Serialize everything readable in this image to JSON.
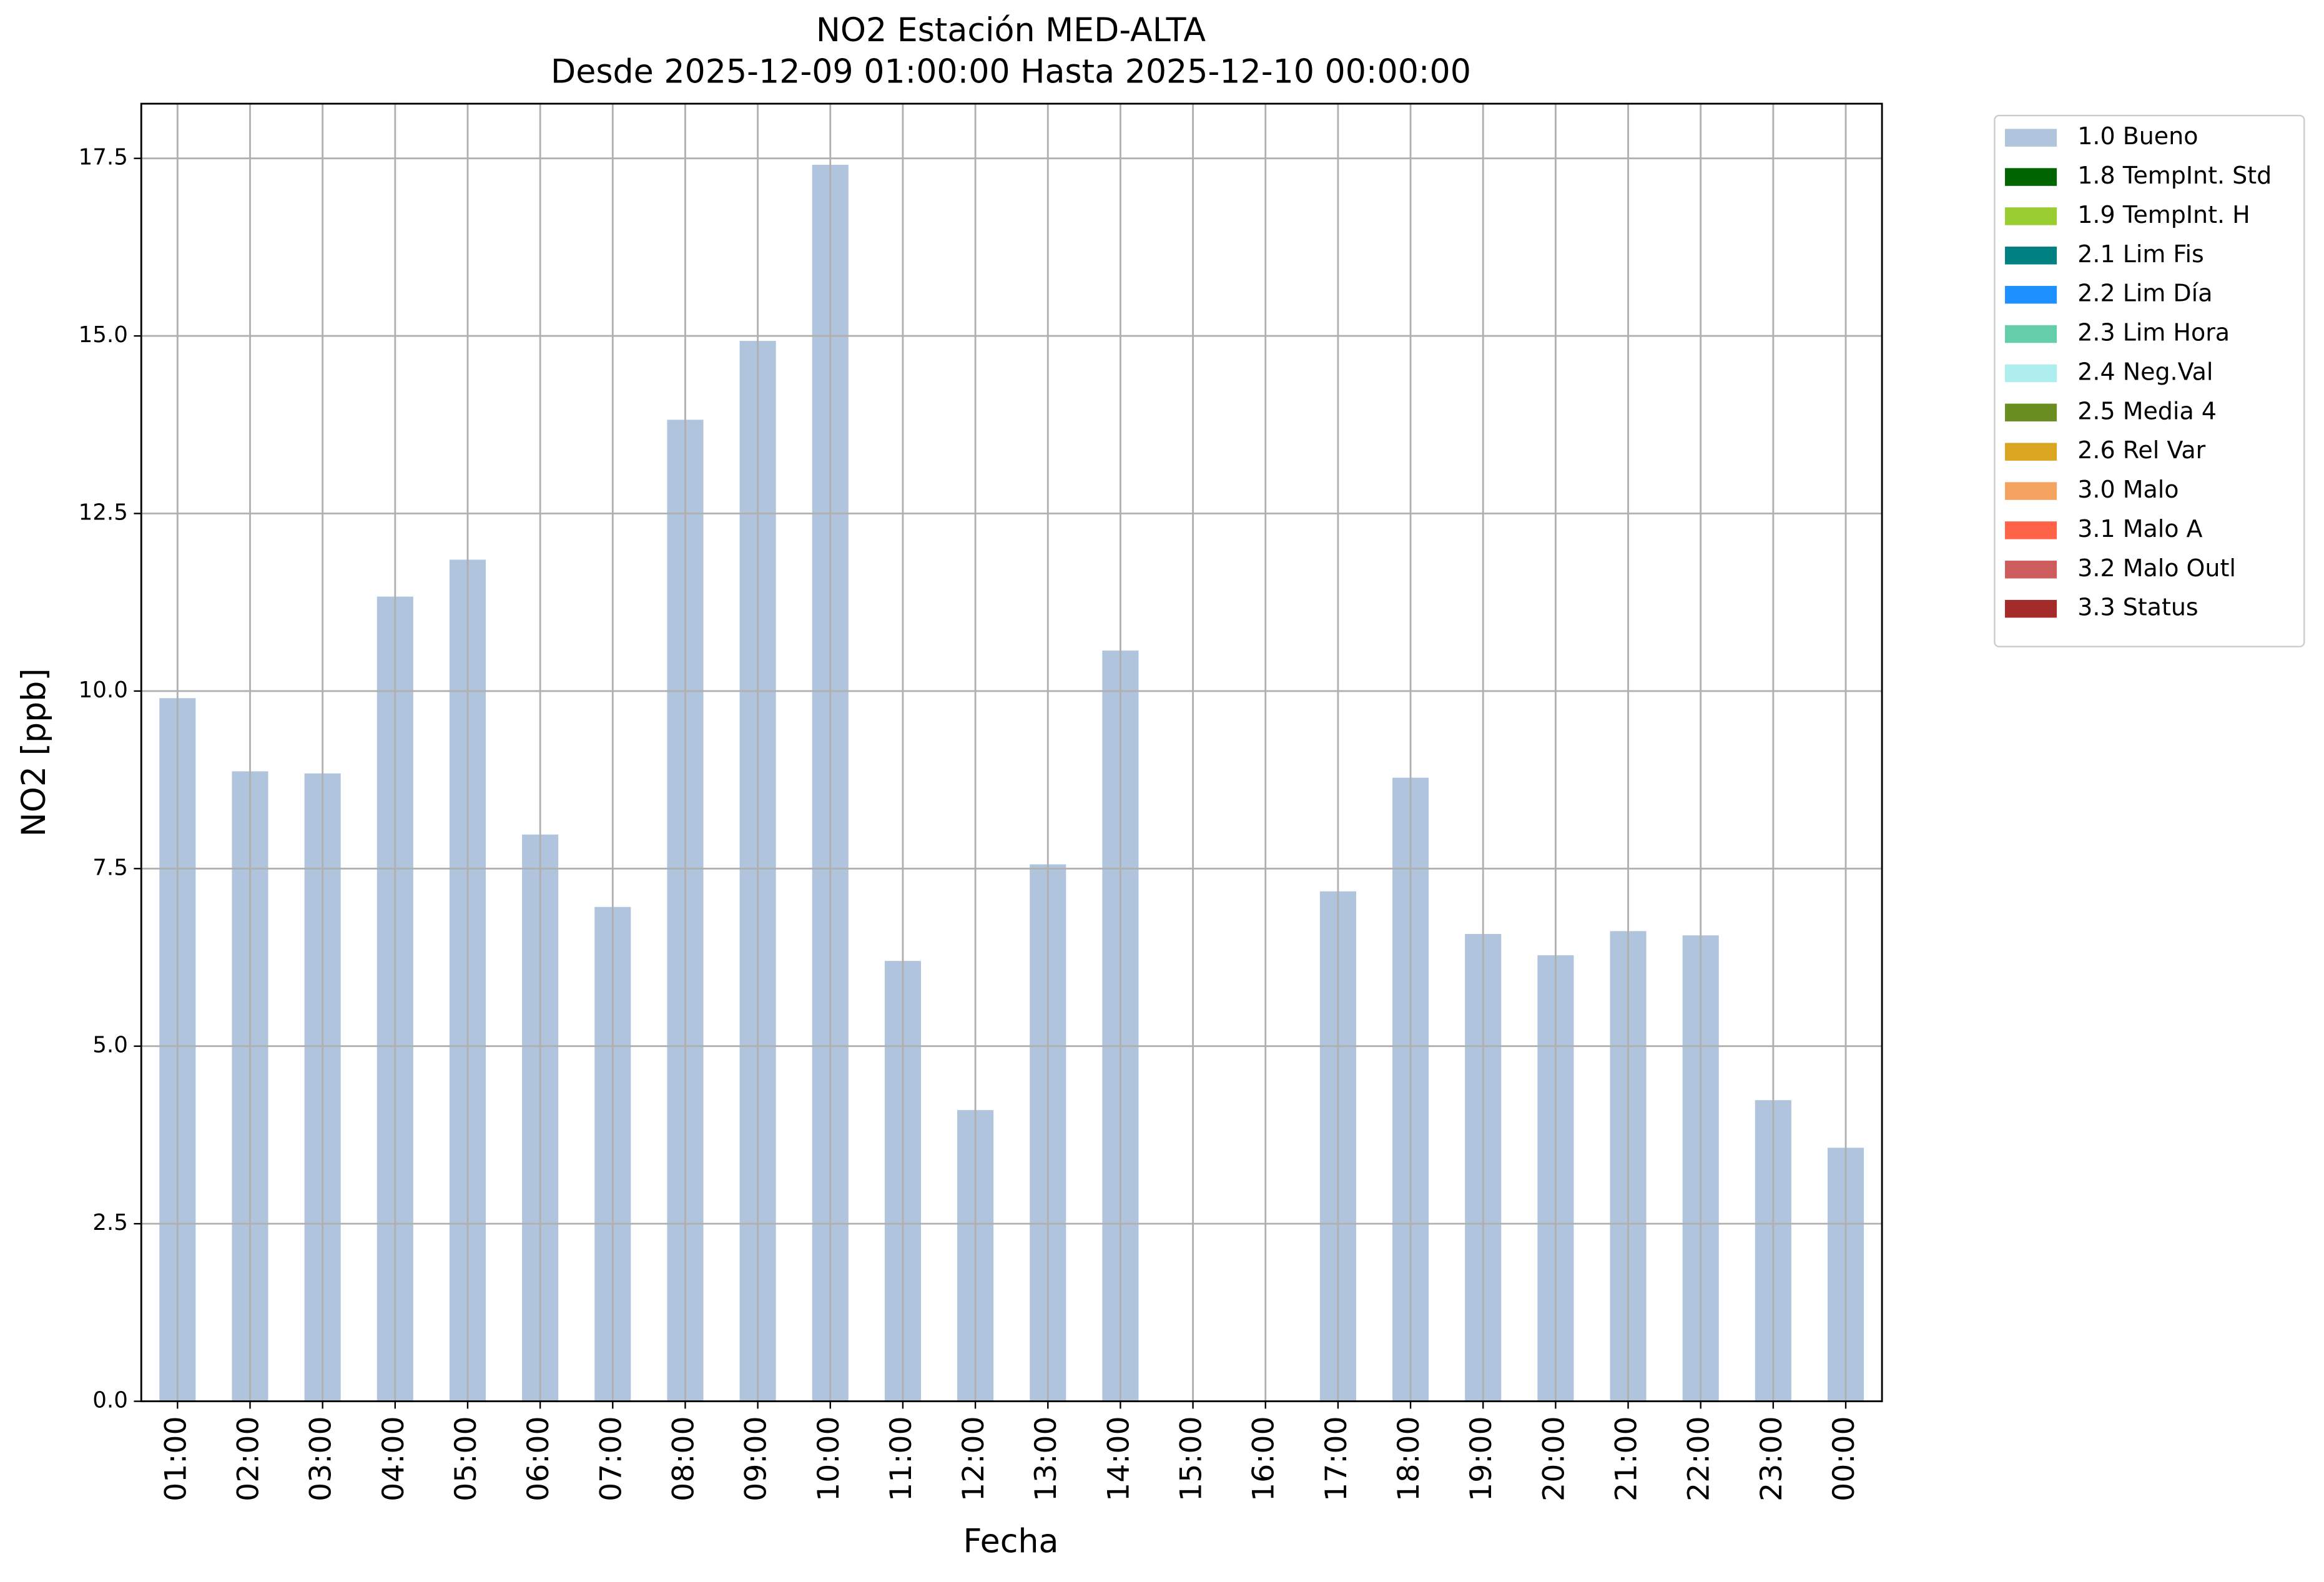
{
  "chart_data": {
    "type": "bar",
    "stacked": true,
    "title": "NO2 Estación MED-ALTA",
    "subtitle": "Desde 2025-12-09 01:00:00 Hasta 2025-12-10 00:00:00",
    "x_label": "Fecha",
    "y_label": "NO2 [ppb]",
    "categories": [
      "01:00",
      "02:00",
      "03:00",
      "04:00",
      "05:00",
      "06:00",
      "07:00",
      "08:00",
      "09:00",
      "10:00",
      "11:00",
      "12:00",
      "13:00",
      "14:00",
      "15:00",
      "16:00",
      "17:00",
      "18:00",
      "19:00",
      "20:00",
      "21:00",
      "22:00",
      "23:00",
      "00:00"
    ],
    "series": [
      {
        "name": "1.0 Bueno",
        "color": "#b0c4de",
        "values": [
          9.9,
          8.87,
          8.84,
          11.33,
          11.85,
          7.98,
          6.96,
          13.82,
          14.93,
          17.41,
          6.2,
          4.1,
          7.56,
          10.57,
          null,
          null,
          7.18,
          8.78,
          6.58,
          6.28,
          6.62,
          6.56,
          4.24,
          3.57
        ]
      },
      {
        "name": "1.8 TempInt. Std",
        "color": "#006400",
        "values": [
          null,
          null,
          null,
          null,
          null,
          null,
          null,
          null,
          null,
          null,
          null,
          null,
          null,
          null,
          null,
          null,
          null,
          null,
          null,
          null,
          null,
          null,
          null,
          null
        ]
      },
      {
        "name": "1.9 TempInt. H",
        "color": "#9acd32",
        "values": [
          null,
          null,
          null,
          null,
          null,
          null,
          null,
          null,
          null,
          null,
          null,
          null,
          null,
          null,
          null,
          null,
          null,
          null,
          null,
          null,
          null,
          null,
          null,
          null
        ]
      },
      {
        "name": "2.1 Lim Fis",
        "color": "#008080",
        "values": [
          null,
          null,
          null,
          null,
          null,
          null,
          null,
          null,
          null,
          null,
          null,
          null,
          null,
          null,
          null,
          null,
          null,
          null,
          null,
          null,
          null,
          null,
          null,
          null
        ]
      },
      {
        "name": "2.2 Lim Día",
        "color": "#1e90ff",
        "values": [
          null,
          null,
          null,
          null,
          null,
          null,
          null,
          null,
          null,
          null,
          null,
          null,
          null,
          null,
          null,
          null,
          null,
          null,
          null,
          null,
          null,
          null,
          null,
          null
        ]
      },
      {
        "name": "2.3 Lim Hora",
        "color": "#66cdaa",
        "values": [
          null,
          null,
          null,
          null,
          null,
          null,
          null,
          null,
          null,
          null,
          null,
          null,
          null,
          null,
          null,
          null,
          null,
          null,
          null,
          null,
          null,
          null,
          null,
          null
        ]
      },
      {
        "name": "2.4 Neg.Val",
        "color": "#afeeee",
        "values": [
          null,
          null,
          null,
          null,
          null,
          null,
          null,
          null,
          null,
          null,
          null,
          null,
          null,
          null,
          null,
          null,
          null,
          null,
          null,
          null,
          null,
          null,
          null,
          null
        ]
      },
      {
        "name": "2.5 Media 4",
        "color": "#6b8e23",
        "values": [
          null,
          null,
          null,
          null,
          null,
          null,
          null,
          null,
          null,
          null,
          null,
          null,
          null,
          null,
          null,
          null,
          null,
          null,
          null,
          null,
          null,
          null,
          null,
          null
        ]
      },
      {
        "name": "2.6 Rel Var",
        "color": "#daa520",
        "values": [
          null,
          null,
          null,
          null,
          null,
          null,
          null,
          null,
          null,
          null,
          null,
          null,
          null,
          null,
          null,
          null,
          null,
          null,
          null,
          null,
          null,
          null,
          null,
          null
        ]
      },
      {
        "name": "3.0 Malo",
        "color": "#f4a460",
        "values": [
          null,
          null,
          null,
          null,
          null,
          null,
          null,
          null,
          null,
          null,
          null,
          null,
          null,
          null,
          null,
          null,
          null,
          null,
          null,
          null,
          null,
          null,
          null,
          null
        ]
      },
      {
        "name": "3.1 Malo A",
        "color": "#ff6347",
        "values": [
          null,
          null,
          null,
          null,
          null,
          null,
          null,
          null,
          null,
          null,
          null,
          null,
          null,
          null,
          null,
          null,
          null,
          null,
          null,
          null,
          null,
          null,
          null,
          null
        ]
      },
      {
        "name": "3.2 Malo Outl",
        "color": "#cd5c5c",
        "values": [
          null,
          null,
          null,
          null,
          null,
          null,
          null,
          null,
          null,
          null,
          null,
          null,
          null,
          null,
          null,
          null,
          null,
          null,
          null,
          null,
          null,
          null,
          null,
          null
        ]
      },
      {
        "name": "3.3 Status",
        "color": "#a52a2a",
        "values": [
          null,
          null,
          null,
          null,
          null,
          null,
          null,
          null,
          null,
          null,
          null,
          null,
          null,
          null,
          null,
          null,
          null,
          null,
          null,
          null,
          null,
          null,
          null,
          null
        ]
      }
    ],
    "ylim": [
      0,
      18.27
    ],
    "yticks": [
      {
        "value": 0,
        "label": "0.0"
      },
      2.5,
      {
        "value": 5,
        "label": "5.0"
      },
      7.5,
      {
        "value": 10,
        "label": "10.0"
      },
      12.5,
      {
        "value": 15,
        "label": "15.0"
      },
      17.5
    ],
    "grid": true,
    "legend": "outside upper right"
  }
}
